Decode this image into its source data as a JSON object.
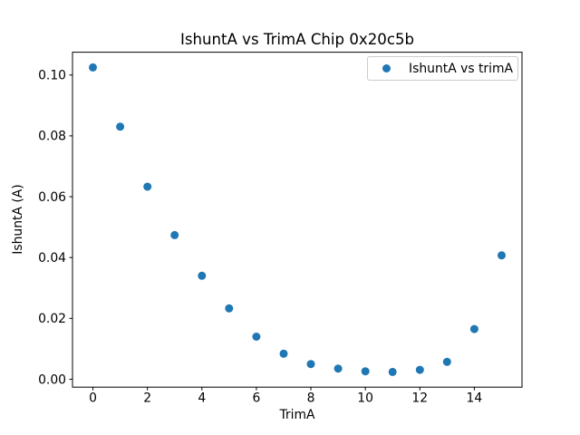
{
  "figure": {
    "colors": {
      "marker": "#1f77b4",
      "spine": "#000000",
      "tick_text": "#000000",
      "legend_border": "#cccccc",
      "background": "#ffffff"
    }
  },
  "chart_data": {
    "type": "scatter",
    "title": "IshuntA vs TrimA Chip 0x20c5b",
    "xlabel": "TrimA",
    "ylabel": "IshuntA (A)",
    "legend_entries": [
      "IshuntA vs trimA"
    ],
    "legend_position": "upper right",
    "grid": false,
    "x": [
      0,
      1,
      2,
      3,
      4,
      5,
      6,
      7,
      8,
      9,
      10,
      11,
      12,
      13,
      14,
      15
    ],
    "y": [
      0.1025,
      0.083,
      0.0633,
      0.0474,
      0.034,
      0.0233,
      0.014,
      0.0084,
      0.005,
      0.0035,
      0.0026,
      0.0024,
      0.0031,
      0.0057,
      0.0165,
      0.0407
    ],
    "xlim": [
      -0.75,
      15.75
    ],
    "ylim": [
      -0.0026,
      0.1075
    ],
    "xticks": [
      0,
      2,
      4,
      6,
      8,
      10,
      12,
      14
    ],
    "xtick_labels": [
      "0",
      "2",
      "4",
      "6",
      "8",
      "10",
      "12",
      "14"
    ],
    "yticks": [
      0.0,
      0.02,
      0.04,
      0.06,
      0.08,
      0.1
    ],
    "ytick_labels": [
      "0.00",
      "0.02",
      "0.04",
      "0.06",
      "0.08",
      "0.10"
    ],
    "marker_color": "#1f77b4",
    "marker_radius": 4.5
  }
}
